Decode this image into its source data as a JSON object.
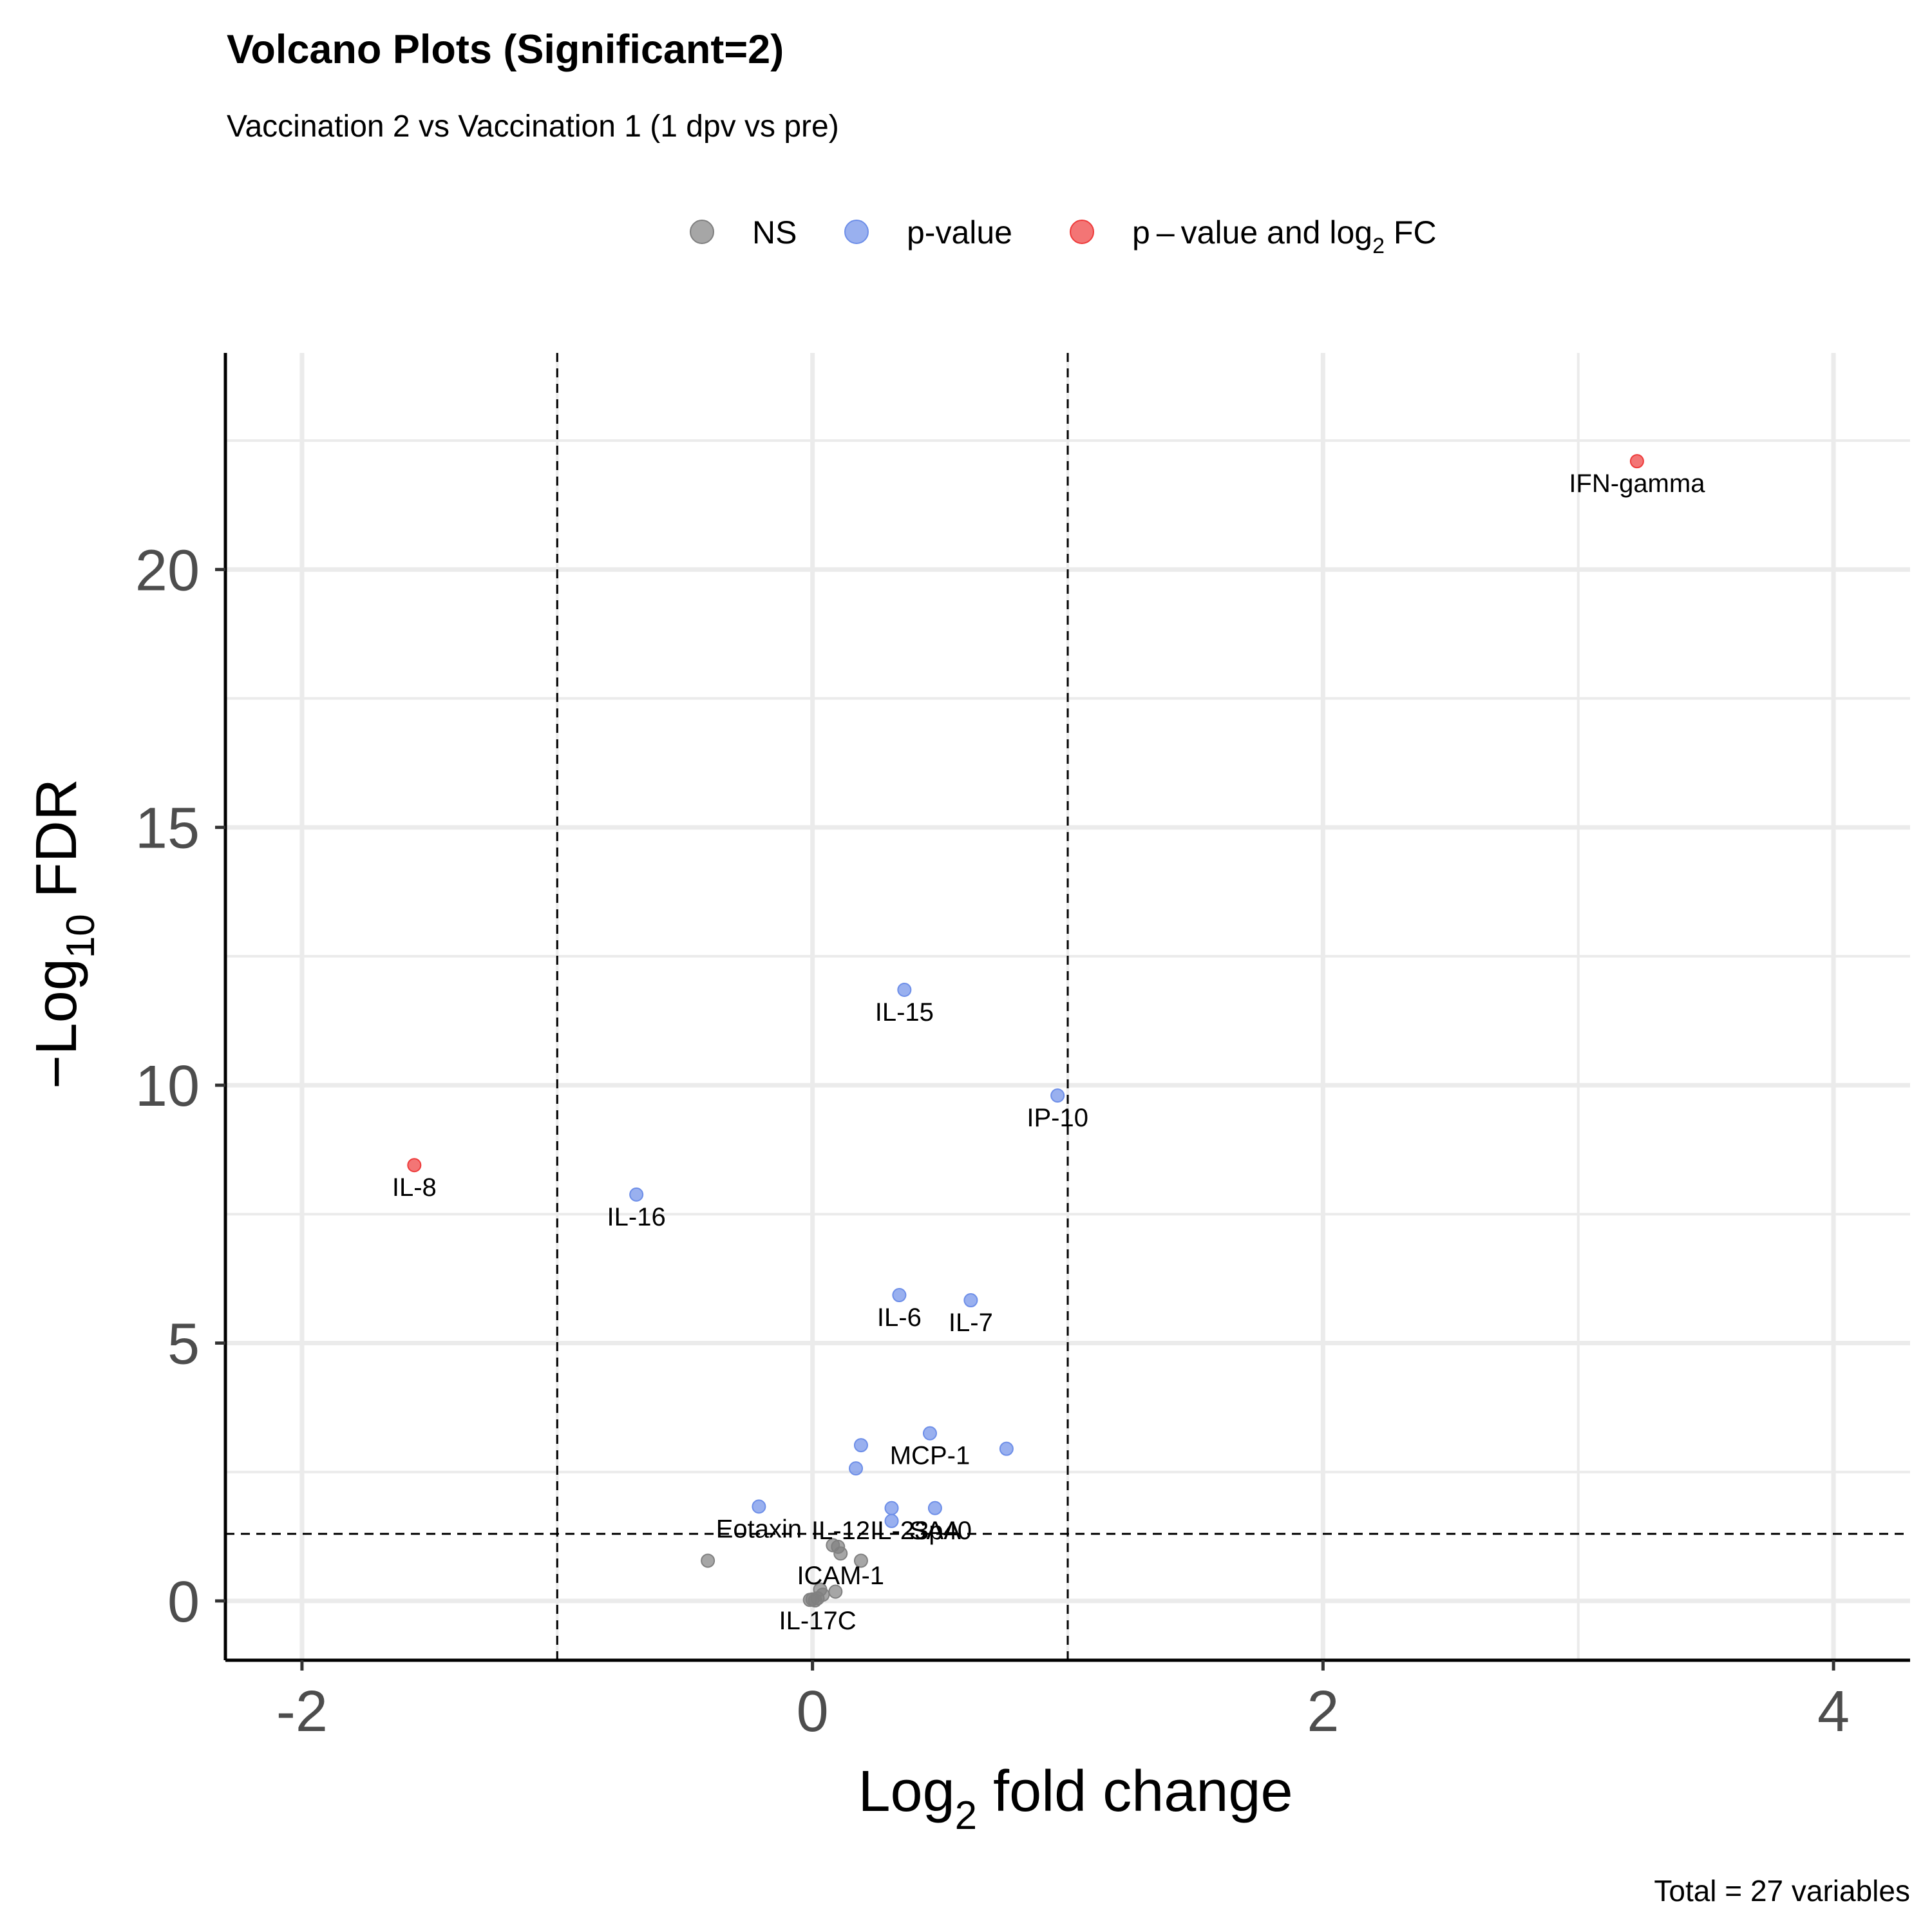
{
  "chart_data": {
    "type": "scatter",
    "title": "Volcano Plots (Significant=2)",
    "subtitle": "Vaccination 2 vs Vaccination 1 (1 dpv vs pre)",
    "xlabel": {
      "pre": "Log",
      "sub": "2",
      "post": " fold change"
    },
    "ylabel": {
      "pre": "−Log",
      "sub": "10",
      "post": " FDR"
    },
    "caption": "Total = 27 variables",
    "xlim": [
      -2.3,
      4.3
    ],
    "ylim": [
      -1.15,
      24.2
    ],
    "x_ticks": [
      -2,
      0,
      2,
      4
    ],
    "x_tick_labels": [
      "-2",
      "0",
      "2",
      "4"
    ],
    "y_ticks": [
      0,
      5,
      10,
      15,
      20
    ],
    "y_tick_labels": [
      "0",
      "5",
      "10",
      "15",
      "20"
    ],
    "grid": true,
    "fc_cutoffs": [
      -1,
      1
    ],
    "p_cutoff": 1.3,
    "legend_position": "top",
    "legend": [
      {
        "key": "ns",
        "label": "NS"
      },
      {
        "key": "p",
        "label": "p-value"
      },
      {
        "key": "pfc",
        "label": {
          "pre": "p – value and log",
          "sub": "2",
          "post": " FC"
        }
      }
    ],
    "colors": {
      "ns": "#808080",
      "p": "#6d8ee8",
      "pfc": "#ee3b3b"
    },
    "points": [
      {
        "label": "IFN-gamma",
        "x": 3.23,
        "y": 22.1,
        "cat": "pfc"
      },
      {
        "label": "IL-8",
        "x": -1.56,
        "y": 8.45,
        "cat": "pfc"
      },
      {
        "label": "IL-15",
        "x": 0.36,
        "y": 11.85,
        "cat": "p"
      },
      {
        "label": "IP-10",
        "x": 0.96,
        "y": 9.8,
        "cat": "p"
      },
      {
        "label": "IL-16",
        "x": -0.69,
        "y": 7.88,
        "cat": "p"
      },
      {
        "label": "IL-6",
        "x": 0.34,
        "y": 5.93,
        "cat": "p"
      },
      {
        "label": "IL-7",
        "x": 0.62,
        "y": 5.83,
        "cat": "p"
      },
      {
        "label": "MCP-1",
        "x": 0.46,
        "y": 3.25,
        "cat": "p"
      },
      {
        "label": "",
        "x": 0.19,
        "y": 3.02,
        "cat": "p"
      },
      {
        "label": "",
        "x": 0.76,
        "y": 2.95,
        "cat": "p"
      },
      {
        "label": "",
        "x": 0.17,
        "y": 2.57,
        "cat": "p"
      },
      {
        "label": "IL-12IL-23p40",
        "x": 0.31,
        "y": 1.8,
        "cat": "p"
      },
      {
        "label": "",
        "x": 0.31,
        "y": 1.55,
        "cat": "p"
      },
      {
        "label": "SAA",
        "x": 0.48,
        "y": 1.8,
        "cat": "p"
      },
      {
        "label": "Eotaxin",
        "x": -0.21,
        "y": 1.83,
        "cat": "p"
      },
      {
        "label": "",
        "x": -0.41,
        "y": 0.78,
        "cat": "ns"
      },
      {
        "label": "",
        "x": 0.08,
        "y": 1.08,
        "cat": "ns"
      },
      {
        "label": "",
        "x": 0.1,
        "y": 1.05,
        "cat": "ns"
      },
      {
        "label": "ICAM-1",
        "x": 0.11,
        "y": 0.92,
        "cat": "ns"
      },
      {
        "label": "",
        "x": 0.19,
        "y": 0.78,
        "cat": "ns"
      },
      {
        "label": "",
        "x": 0.09,
        "y": 0.18,
        "cat": "ns"
      },
      {
        "label": "",
        "x": 0.03,
        "y": 0.22,
        "cat": "ns"
      },
      {
        "label": "",
        "x": 0.04,
        "y": 0.12,
        "cat": "ns"
      },
      {
        "label": "",
        "x": 0.0,
        "y": 0.03,
        "cat": "ns"
      },
      {
        "label": "IL-17C",
        "x": 0.02,
        "y": 0.05,
        "cat": "ns"
      },
      {
        "label": "",
        "x": -0.01,
        "y": 0.02,
        "cat": "ns"
      },
      {
        "label": "",
        "x": 0.01,
        "y": 0.01,
        "cat": "ns"
      }
    ]
  }
}
